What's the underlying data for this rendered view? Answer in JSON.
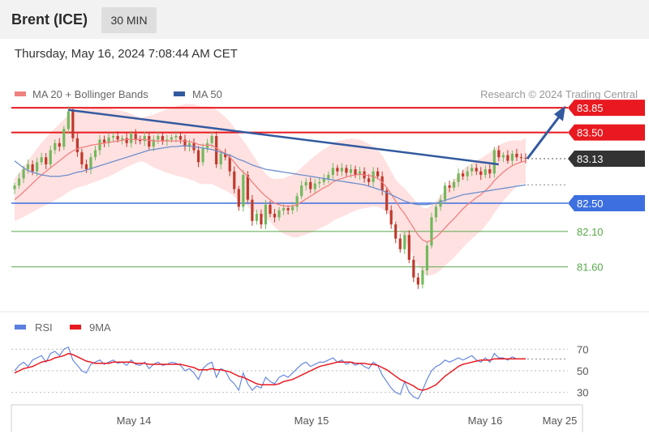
{
  "header": {
    "title": "Brent (ICE)",
    "timeframe": "30 MIN"
  },
  "timestamp": "Thursday, May 16, 2024 7:08:44 AM CET",
  "legend": {
    "ma20": "MA 20 + Bollinger Bands",
    "ma50": "MA 50",
    "copyright": "Research © 2024 Trading Central"
  },
  "rsi_legend": {
    "rsi": "RSI",
    "ma9": "9MA"
  },
  "colors": {
    "resistance": "#e8191f",
    "support_main": "#3d6fe0",
    "support": "#58a84a",
    "trend": "#335a9f",
    "bb_fill": "#ffdcdc",
    "ma20": "#f08080",
    "ma50": "#6f8fcc",
    "up": "#73b85c",
    "down": "#c0392b",
    "last": "#333333"
  },
  "chart_data": [
    {
      "type": "candlestick",
      "title": "",
      "y_range": [
        81.0,
        84.0
      ],
      "x_ticks": [
        "May 14",
        "May 15",
        "May 16",
        "May 25"
      ],
      "levels": [
        {
          "label": "83.85",
          "value": 83.85,
          "kind": "resistance"
        },
        {
          "label": "83.50",
          "value": 83.5,
          "kind": "resistance"
        },
        {
          "label": "83.13",
          "value": 83.13,
          "kind": "last"
        },
        {
          "label": "82.50",
          "value": 82.5,
          "kind": "support_main"
        },
        {
          "label": "82.10",
          "value": 82.1,
          "kind": "support"
        },
        {
          "label": "81.60",
          "value": 81.6,
          "kind": "support"
        }
      ],
      "close": [
        82.75,
        82.85,
        82.98,
        83.05,
        82.95,
        83.08,
        83.15,
        83.05,
        83.25,
        83.35,
        83.3,
        83.55,
        83.8,
        83.42,
        83.22,
        83.05,
        82.98,
        83.15,
        83.25,
        83.4,
        83.35,
        83.43,
        83.45,
        83.4,
        83.42,
        83.35,
        83.48,
        83.4,
        83.38,
        83.45,
        83.3,
        83.4,
        83.45,
        83.38,
        83.4,
        83.43,
        83.45,
        83.4,
        83.3,
        83.35,
        83.25,
        83.08,
        83.28,
        83.35,
        83.45,
        83.05,
        83.2,
        83.15,
        82.95,
        82.7,
        82.45,
        82.9,
        82.55,
        82.25,
        82.35,
        82.2,
        82.48,
        82.35,
        82.3,
        82.4,
        82.43,
        82.4,
        82.45,
        82.6,
        82.75,
        82.8,
        82.7,
        82.78,
        82.8,
        82.85,
        82.9,
        83.0,
        82.95,
        83.0,
        82.93,
        82.98,
        82.9,
        82.95,
        82.85,
        82.8,
        82.95,
        82.88,
        82.68,
        82.4,
        82.2,
        82.0,
        81.85,
        82.05,
        81.7,
        81.45,
        81.35,
        81.55,
        81.9,
        82.3,
        82.45,
        82.55,
        82.75,
        82.72,
        82.8,
        82.92,
        82.88,
        82.95,
        83.0,
        82.95,
        82.9,
        82.98,
        82.92,
        83.25,
        83.15,
        83.18,
        83.1,
        83.2,
        83.15,
        83.14,
        83.13
      ],
      "ma20": [
        82.55,
        82.6,
        82.66,
        82.72,
        82.78,
        82.84,
        82.9,
        82.95,
        83.0,
        83.05,
        83.1,
        83.15,
        83.2,
        83.24,
        83.27,
        83.29,
        83.3,
        83.32,
        83.33,
        83.34,
        83.35,
        83.36,
        83.37,
        83.38,
        83.39,
        83.4,
        83.4,
        83.4,
        83.4,
        83.4,
        83.39,
        83.38,
        83.38,
        83.38,
        83.38,
        83.38,
        83.38,
        83.38,
        83.38,
        83.37,
        83.36,
        83.33,
        83.32,
        83.32,
        83.32,
        83.28,
        83.24,
        83.2,
        83.15,
        83.08,
        83.0,
        82.94,
        82.88,
        82.8,
        82.73,
        82.66,
        82.6,
        82.55,
        82.5,
        82.48,
        82.46,
        82.46,
        82.46,
        82.48,
        82.52,
        82.56,
        82.6,
        82.64,
        82.68,
        82.72,
        82.75,
        82.8,
        82.83,
        82.85,
        82.87,
        82.89,
        82.9,
        82.91,
        82.9,
        82.89,
        82.88,
        82.85,
        82.8,
        82.72,
        82.63,
        82.53,
        82.43,
        82.35,
        82.25,
        82.15,
        82.05,
        81.98,
        81.95,
        81.98,
        82.02,
        82.08,
        82.15,
        82.22,
        82.28,
        82.35,
        82.42,
        82.48,
        82.53,
        82.58,
        82.62,
        82.68,
        82.74,
        82.82,
        82.88,
        82.94,
        82.99,
        83.03,
        83.06,
        83.08,
        83.1
      ],
      "ma50": [
        83.1,
        83.05,
        83.0,
        82.96,
        82.94,
        82.92,
        82.9,
        82.89,
        82.88,
        82.88,
        82.88,
        82.89,
        82.9,
        82.92,
        82.94,
        82.95,
        82.97,
        82.99,
        83.01,
        83.03,
        83.05,
        83.07,
        83.09,
        83.11,
        83.13,
        83.15,
        83.17,
        83.19,
        83.21,
        83.23,
        83.25,
        83.26,
        83.27,
        83.28,
        83.29,
        83.3,
        83.3,
        83.31,
        83.31,
        83.31,
        83.3,
        83.29,
        83.28,
        83.27,
        83.26,
        83.24,
        83.22,
        83.2,
        83.18,
        83.15,
        83.12,
        83.1,
        83.07,
        83.04,
        83.02,
        83.0,
        82.98,
        82.97,
        82.96,
        82.95,
        82.94,
        82.93,
        82.92,
        82.91,
        82.9,
        82.89,
        82.88,
        82.87,
        82.86,
        82.85,
        82.84,
        82.83,
        82.82,
        82.81,
        82.8,
        82.79,
        82.78,
        82.77,
        82.76,
        82.74,
        82.72,
        82.7,
        82.68,
        82.65,
        82.62,
        82.59,
        82.56,
        82.53,
        82.51,
        82.49,
        82.48,
        82.48,
        82.48,
        82.49,
        82.5,
        82.52,
        82.54,
        82.56,
        82.58,
        82.6,
        82.62,
        82.63,
        82.64,
        82.65,
        82.66,
        82.67,
        82.68,
        82.69,
        82.7,
        82.71,
        82.72,
        82.73,
        82.74,
        82.75,
        82.76
      ]
    },
    {
      "type": "line",
      "title": "",
      "y_range": [
        20,
        80
      ],
      "y_ticks": [
        "70",
        "50",
        "30"
      ],
      "series": [
        {
          "name": "RSI",
          "values": [
            50,
            55,
            58,
            54,
            60,
            62,
            64,
            58,
            66,
            68,
            64,
            70,
            72,
            60,
            55,
            50,
            48,
            56,
            58,
            60,
            56,
            58,
            60,
            57,
            58,
            55,
            60,
            56,
            55,
            58,
            52,
            56,
            58,
            55,
            56,
            58,
            57,
            55,
            50,
            52,
            48,
            42,
            52,
            56,
            58,
            44,
            52,
            50,
            42,
            38,
            32,
            48,
            38,
            32,
            36,
            34,
            44,
            40,
            38,
            44,
            46,
            44,
            48,
            52,
            56,
            58,
            54,
            56,
            58,
            58,
            60,
            62,
            58,
            60,
            56,
            58,
            55,
            57,
            54,
            52,
            58,
            55,
            46,
            40,
            34,
            30,
            28,
            40,
            30,
            26,
            24,
            32,
            42,
            50,
            54,
            56,
            60,
            58,
            60,
            62,
            60,
            62,
            64,
            60,
            58,
            62,
            58,
            66,
            62,
            62,
            60,
            63,
            61,
            61,
            61
          ]
        },
        {
          "name": "9MA",
          "values": [
            48,
            50,
            52,
            53,
            54,
            56,
            58,
            59,
            60,
            62,
            63,
            64,
            66,
            65,
            63,
            61,
            59,
            58,
            57,
            57,
            57,
            57,
            58,
            58,
            58,
            58,
            58,
            57,
            57,
            57,
            56,
            56,
            56,
            56,
            56,
            56,
            56,
            56,
            55,
            54,
            53,
            51,
            51,
            51,
            52,
            51,
            51,
            50,
            49,
            47,
            45,
            44,
            42,
            40,
            38,
            37,
            37,
            37,
            37,
            38,
            40,
            41,
            42,
            44,
            46,
            48,
            50,
            52,
            54,
            55,
            56,
            57,
            58,
            58,
            58,
            58,
            57,
            57,
            57,
            56,
            56,
            55,
            53,
            51,
            48,
            45,
            42,
            40,
            38,
            36,
            33,
            32,
            33,
            35,
            37,
            41,
            45,
            48,
            51,
            54,
            56,
            57,
            58,
            59,
            60,
            60,
            60,
            61,
            61,
            61,
            61,
            61,
            61,
            61,
            61
          ]
        }
      ]
    }
  ]
}
